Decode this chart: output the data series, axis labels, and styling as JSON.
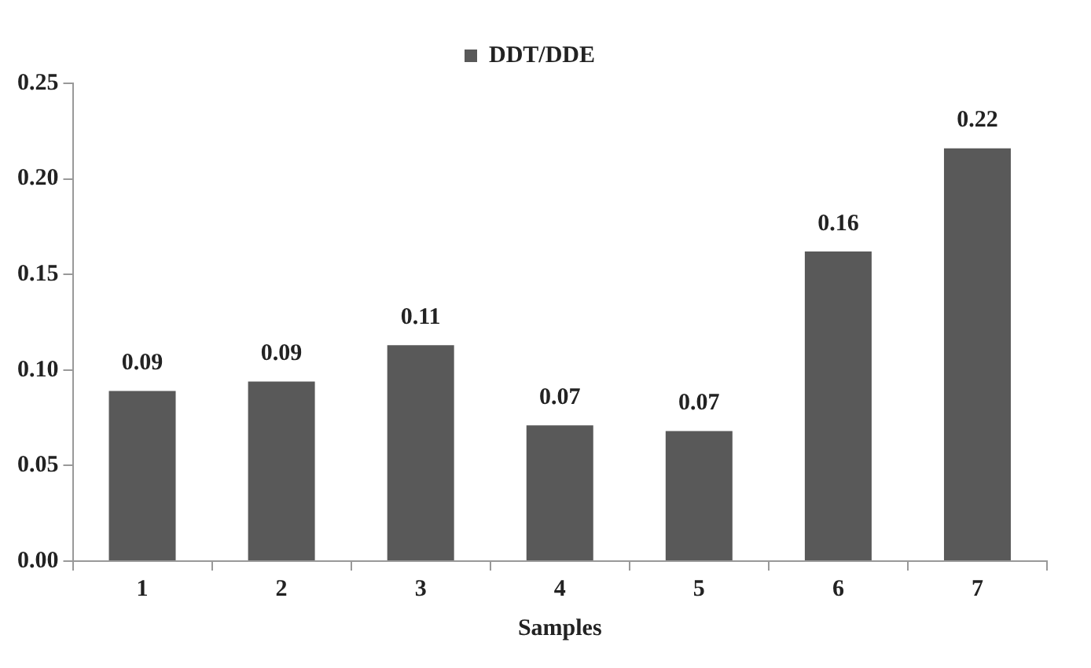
{
  "chart_data": {
    "type": "bar",
    "xlabel": "Samples",
    "categories": [
      "1",
      "2",
      "3",
      "4",
      "5",
      "6",
      "7"
    ],
    "series": [
      {
        "name": "DDT/DDE",
        "color": "#595959",
        "values": [
          0.089,
          0.094,
          0.113,
          0.071,
          0.068,
          0.162,
          0.216
        ],
        "value_labels": [
          "0.09",
          "0.09",
          "0.11",
          "0.07",
          "0.07",
          "0.16",
          "0.22"
        ]
      }
    ],
    "ylim": [
      0,
      0.25
    ],
    "yticks": [
      {
        "value": 0,
        "label": "0.00"
      },
      {
        "value": 0.05,
        "label": "0.05"
      },
      {
        "value": 0.1,
        "label": "0.10"
      },
      {
        "value": 0.15,
        "label": "0.15"
      },
      {
        "value": 0.2,
        "label": "0.20"
      },
      {
        "value": 0.25,
        "label": "0.25"
      }
    ],
    "grid": false,
    "legend": "top"
  }
}
